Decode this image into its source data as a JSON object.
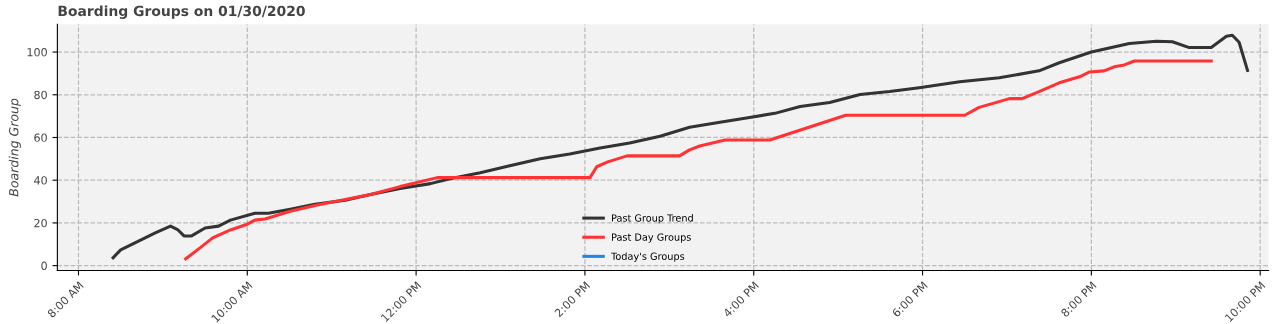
{
  "chart_data": {
    "type": "line",
    "title": "Boarding Groups on 01/30/2020",
    "ylabel": "Boarding Group",
    "xlim": [
      7.75,
      22.1
    ],
    "ylim": [
      -2.3,
      113
    ],
    "xticks": [
      {
        "value": 8,
        "label": "8:00 AM"
      },
      {
        "value": 10,
        "label": "10:00 AM"
      },
      {
        "value": 12,
        "label": "12:00 PM"
      },
      {
        "value": 14,
        "label": "2:00 PM"
      },
      {
        "value": 16,
        "label": "4:00 PM"
      },
      {
        "value": 18,
        "label": "6:00 PM"
      },
      {
        "value": 20,
        "label": "8:00 PM"
      },
      {
        "value": 22,
        "label": "10:00 PM"
      }
    ],
    "yticks": [
      0,
      20,
      40,
      60,
      80,
      100
    ],
    "grid": true,
    "legend": "bottom",
    "line_style": "solid",
    "marker": "none",
    "series": [
      {
        "name": "Past Group Trend",
        "color": "#333333",
        "x": [
          8.41,
          8.5,
          8.91,
          9.09,
          9.18,
          9.25,
          9.34,
          9.5,
          9.66,
          9.8,
          10.09,
          10.25,
          10.51,
          10.8,
          11.16,
          11.46,
          11.81,
          12.17,
          12.4,
          12.76,
          13.11,
          13.47,
          13.82,
          14.18,
          14.53,
          14.89,
          15.24,
          15.6,
          15.95,
          16.25,
          16.55,
          16.9,
          17.26,
          17.61,
          17.96,
          18.44,
          18.91,
          19.38,
          19.62,
          20.0,
          20.45,
          20.77,
          20.96,
          21.16,
          21.42,
          21.6,
          21.67,
          21.75,
          21.85
        ],
        "values": [
          3.7,
          7.4,
          15.3,
          18.5,
          16.7,
          13.9,
          13.9,
          17.6,
          18.5,
          21.3,
          24.5,
          24.5,
          26.4,
          28.7,
          30.6,
          33.3,
          36.1,
          38.4,
          40.7,
          43.5,
          46.8,
          50.0,
          52.3,
          55.1,
          57.4,
          60.6,
          64.8,
          67.1,
          69.4,
          71.3,
          74.5,
          76.4,
          80.1,
          81.5,
          83.3,
          86.1,
          88.0,
          91.2,
          95.0,
          100.0,
          104.0,
          105.1,
          104.8,
          102.1,
          102.1,
          107.4,
          107.9,
          104.6,
          91.4
        ]
      },
      {
        "name": "Past Day Groups",
        "color": "#ff3333",
        "x": [
          9.27,
          9.44,
          9.59,
          9.8,
          10.0,
          10.09,
          10.21,
          10.51,
          10.8,
          11.16,
          11.46,
          11.81,
          12.25,
          14.06,
          14.14,
          14.27,
          14.5,
          15.12,
          15.24,
          15.36,
          15.66,
          16.19,
          17.09,
          18.5,
          18.67,
          19.03,
          19.18,
          19.38,
          19.62,
          19.86,
          19.98,
          20.15,
          20.27,
          20.39,
          20.51,
          21.42
        ],
        "values": [
          3.2,
          8.3,
          13.0,
          16.7,
          19.4,
          21.3,
          21.8,
          25.5,
          28.2,
          31.0,
          33.3,
          37.0,
          41.2,
          41.2,
          46.3,
          48.6,
          51.4,
          51.4,
          54.2,
          56.0,
          58.8,
          58.8,
          70.4,
          70.4,
          74.1,
          78.2,
          78.2,
          81.5,
          85.6,
          88.4,
          90.7,
          91.2,
          93.1,
          94.0,
          95.8,
          95.8
        ]
      },
      {
        "name": "Today's Groups",
        "color": "#1e88e5"
      }
    ]
  }
}
